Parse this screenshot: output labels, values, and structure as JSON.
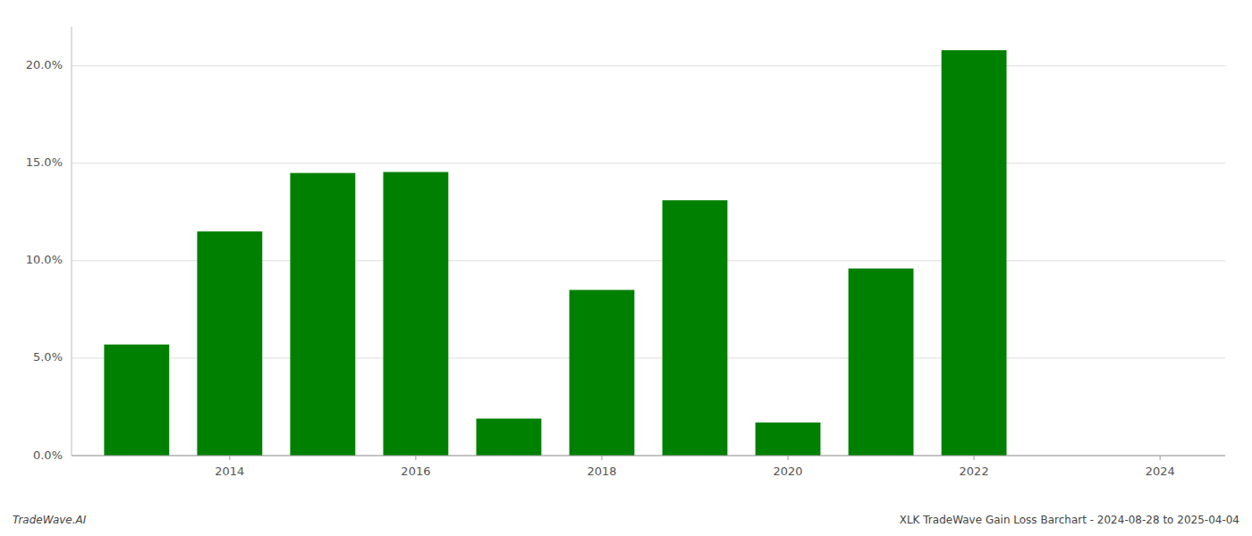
{
  "chart_data": {
    "type": "bar",
    "x": [
      2013,
      2014,
      2015,
      2016,
      2017,
      2018,
      2019,
      2020,
      2021,
      2022,
      2023
    ],
    "values": [
      5.7,
      11.5,
      14.5,
      14.55,
      1.9,
      8.5,
      13.1,
      1.7,
      9.6,
      20.8,
      0.0
    ],
    "color": "#008000",
    "xlim": [
      2012.3,
      2024.7
    ],
    "xticks": [
      2014,
      2016,
      2018,
      2020,
      2022,
      2024
    ],
    "ylim": [
      0,
      22
    ],
    "yticks": [
      {
        "value": 0.0,
        "label": "0.0%"
      },
      {
        "value": 5.0,
        "label": "5.0%"
      },
      {
        "value": 10.0,
        "label": "10.0%"
      },
      {
        "value": 15.0,
        "label": "15.0%"
      },
      {
        "value": 20.0,
        "label": "20.0%"
      }
    ],
    "grid": true,
    "annotations": [
      "TradeWave.AI",
      "XLK TradeWave Gain Loss Barchart - 2024-08-28 to 2025-04-04"
    ]
  }
}
